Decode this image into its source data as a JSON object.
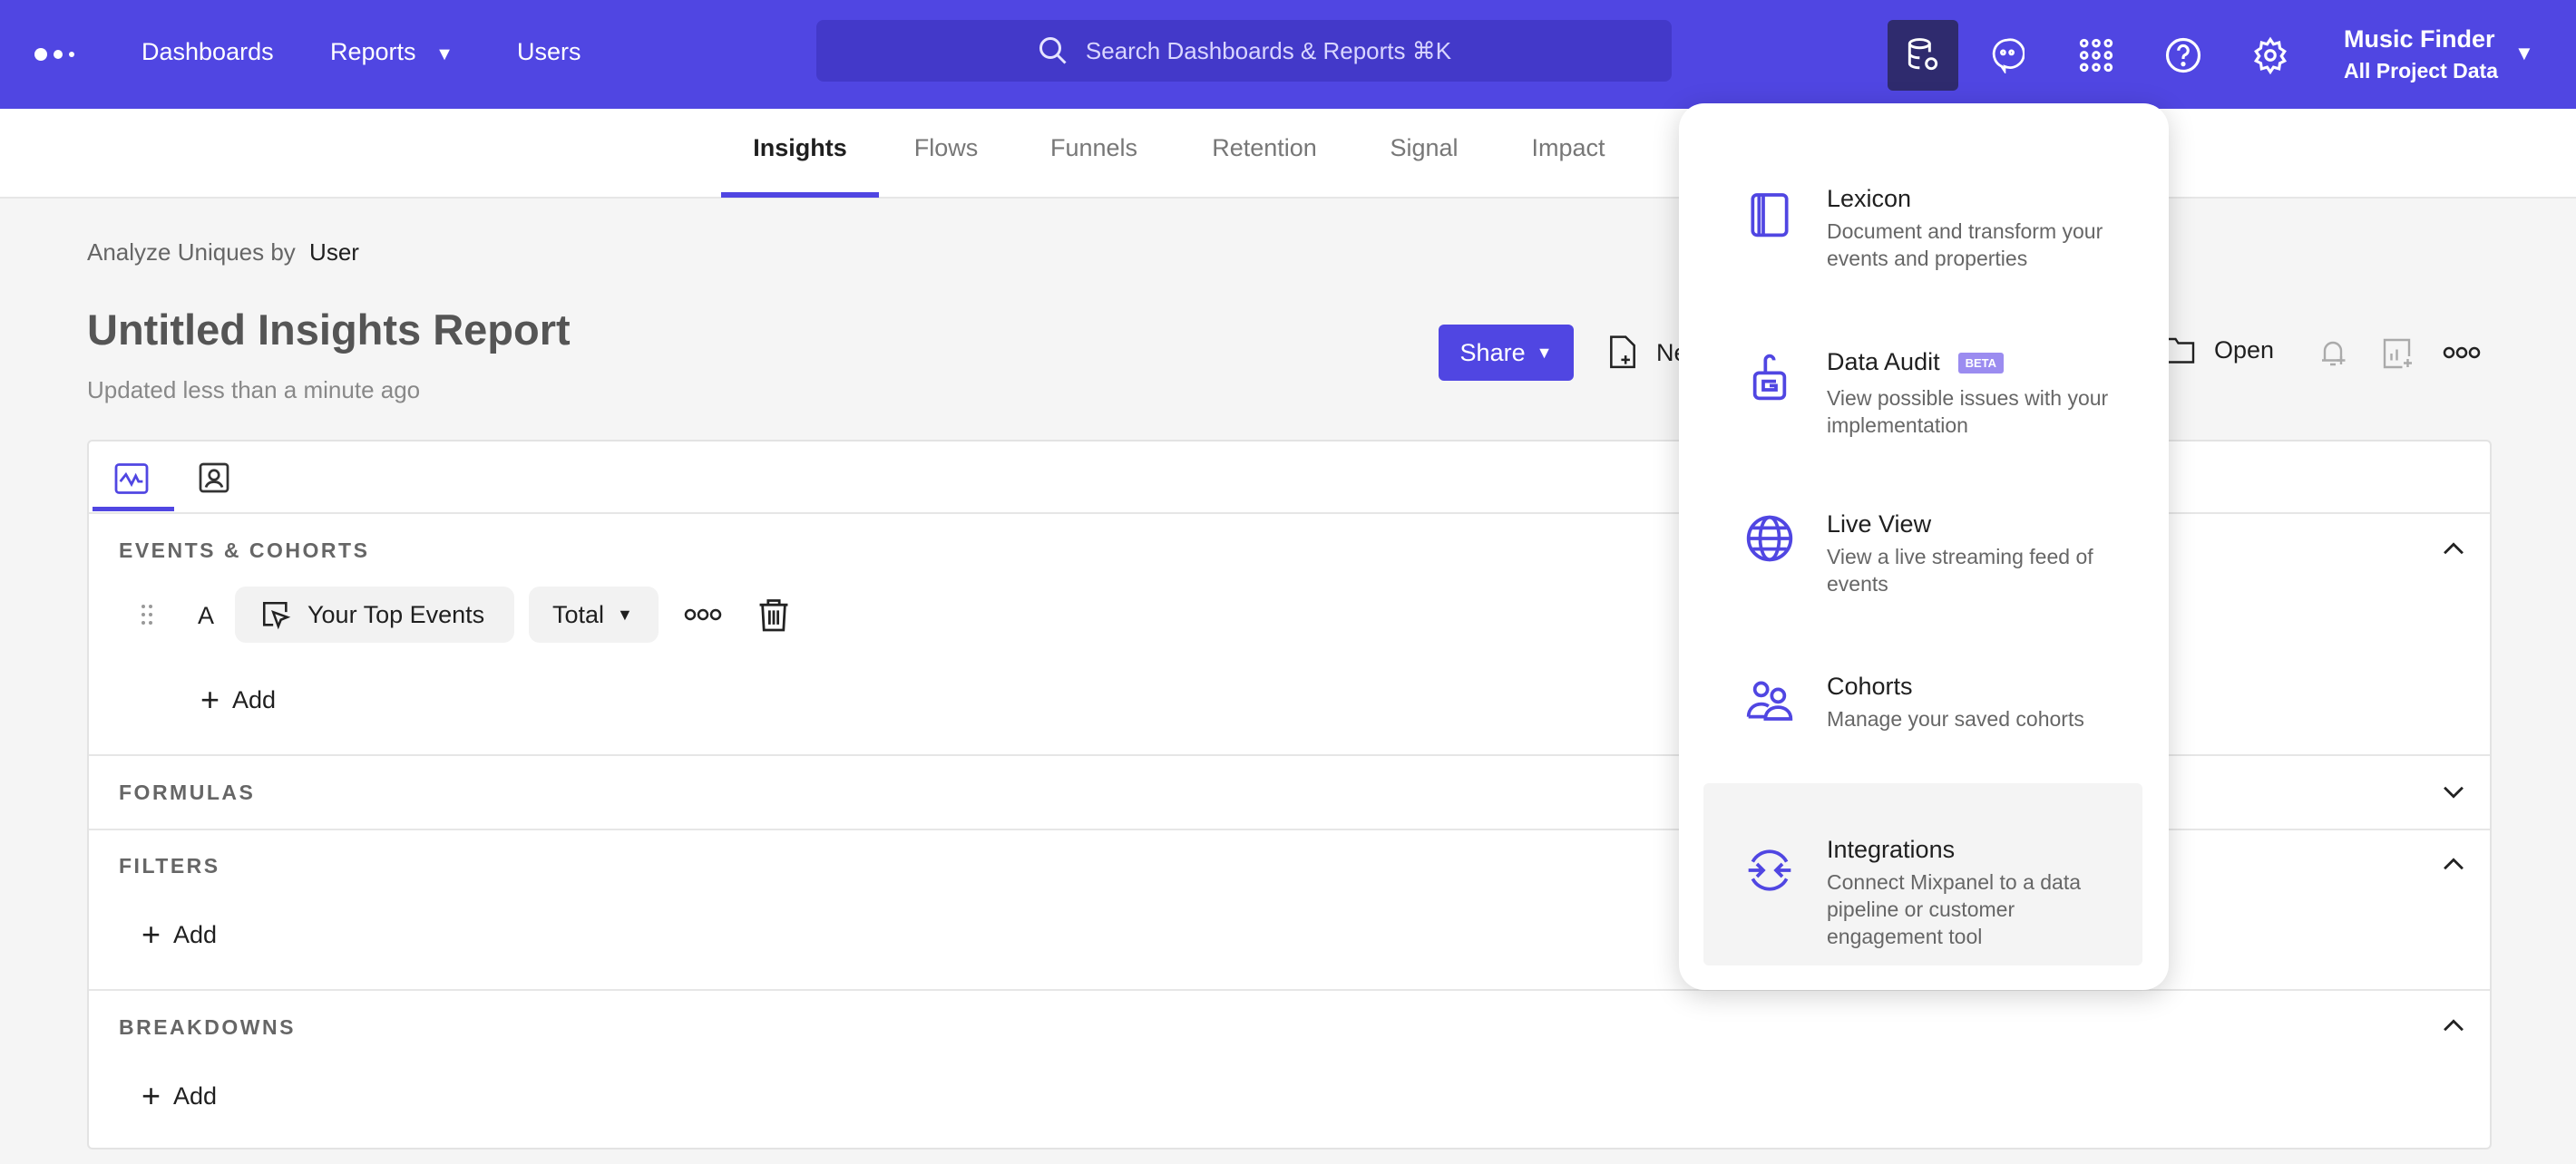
{
  "topbar": {
    "nav": [
      "Dashboards",
      "Reports",
      "Users"
    ],
    "search_placeholder": "Search Dashboards & Reports ⌘K",
    "project_name": "Music Finder",
    "project_scope": "All Project Data",
    "icons": [
      "data-management-icon",
      "chat-icon",
      "apps-grid-icon",
      "help-icon",
      "settings-icon"
    ],
    "accent": "#5046e2"
  },
  "subnav": {
    "tabs": [
      "Insights",
      "Flows",
      "Funnels",
      "Retention",
      "Signal",
      "Impact"
    ],
    "active": "Insights"
  },
  "report": {
    "analyze_label": "Analyze Uniques by",
    "analyze_value": "User",
    "title": "Untitled Insights Report",
    "updated": "Updated less than a minute ago"
  },
  "toolbar": {
    "share": "Share",
    "new": "New",
    "open": "Open"
  },
  "query": {
    "events_header": "EVENTS & COHORTS",
    "row_letter": "A",
    "event": "Your Top Events",
    "measure": "Total",
    "add": "Add",
    "formulas_header": "FORMULAS",
    "filters_header": "FILTERS",
    "breakdowns_header": "BREAKDOWNS"
  },
  "dropdown": {
    "items": [
      {
        "title": "Lexicon",
        "desc": "Document and transform your events and properties"
      },
      {
        "title": "Data Audit",
        "badge": "BETA",
        "desc": "View possible issues with your implementation"
      },
      {
        "title": "Live View",
        "desc": "View a live streaming feed of events"
      },
      {
        "title": "Cohorts",
        "desc": "Manage your saved cohorts"
      },
      {
        "title": "Integrations",
        "desc": "Connect Mixpanel to a data pipeline or customer engagement tool"
      }
    ],
    "highlighted": "Integrations"
  }
}
